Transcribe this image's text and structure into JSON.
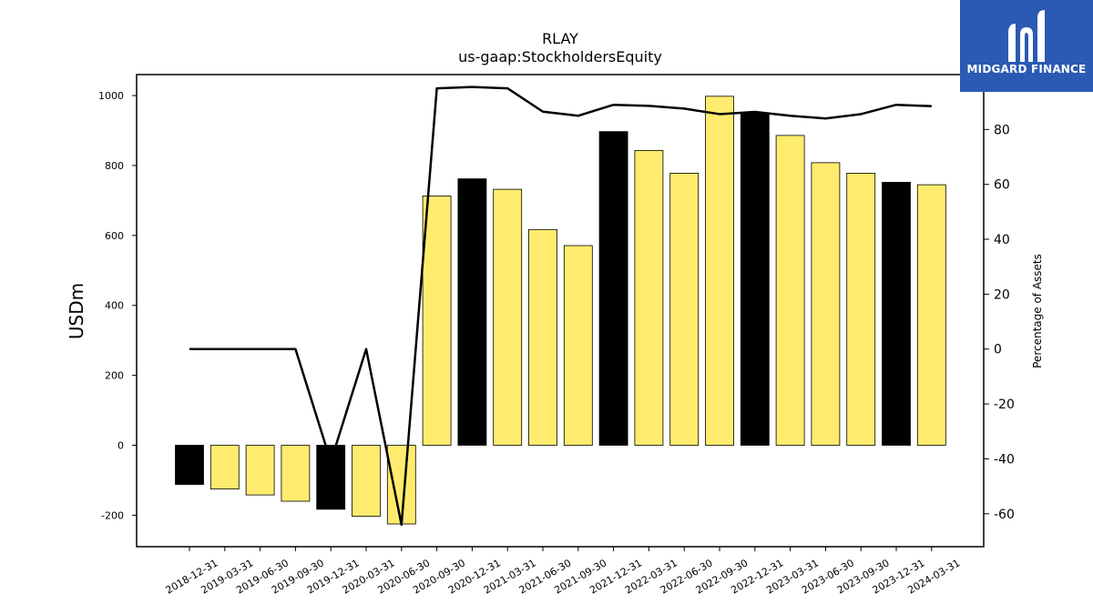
{
  "chart_data": {
    "type": "bar",
    "title": "RLAY",
    "subtitle": "us-gaap:StockholdersEquity",
    "ylabel": "USDm",
    "ylabel_right": "Percentage of Assets",
    "ylim": [
      -290,
      1060
    ],
    "ylim_right": [
      -72,
      100
    ],
    "yticks": [
      -200,
      0,
      200,
      400,
      600,
      800,
      1000
    ],
    "yticks_right": [
      -60,
      -40,
      -20,
      0,
      20,
      40,
      60,
      80
    ],
    "grid": false,
    "categories": [
      "2018-12-31",
      "2019-03-31",
      "2019-06-30",
      "2019-09-30",
      "2019-12-31",
      "2020-03-31",
      "2020-06-30",
      "2020-09-30",
      "2020-12-31",
      "2021-03-31",
      "2021-06-30",
      "2021-09-30",
      "2021-12-31",
      "2022-03-31",
      "2022-06-30",
      "2022-09-30",
      "2022-12-31",
      "2023-03-31",
      "2023-06-30",
      "2023-09-30",
      "2023-12-31",
      "2024-03-31"
    ],
    "series": [
      {
        "values": [
          -112,
          -125,
          -142,
          -160,
          -183,
          -203,
          -225,
          713,
          762,
          732,
          617,
          571,
          897,
          843,
          778,
          998,
          950,
          886,
          808,
          778,
          752,
          745
        ],
        "colors": [
          "#000000",
          "#ffec6e",
          "#ffec6e",
          "#ffec6e",
          "#000000",
          "#ffec6e",
          "#ffec6e",
          "#ffec6e",
          "#000000",
          "#ffec6e",
          "#ffec6e",
          "#ffec6e",
          "#000000",
          "#ffec6e",
          "#ffec6e",
          "#ffec6e",
          "#000000",
          "#ffec6e",
          "#ffec6e",
          "#ffec6e",
          "#000000",
          "#ffec6e"
        ]
      },
      {
        "type": "line",
        "axis": "right",
        "color": "#000000",
        "values": [
          0,
          0,
          0,
          0,
          -41,
          0,
          -64,
          95,
          95.5,
          95,
          86.5,
          85,
          89,
          88.6,
          87.6,
          85.6,
          86.4,
          85,
          84,
          85.6,
          89,
          88.5
        ]
      }
    ]
  },
  "logo": {
    "text": "MIDGARD FINANCE",
    "background": "#2a5ab3"
  }
}
